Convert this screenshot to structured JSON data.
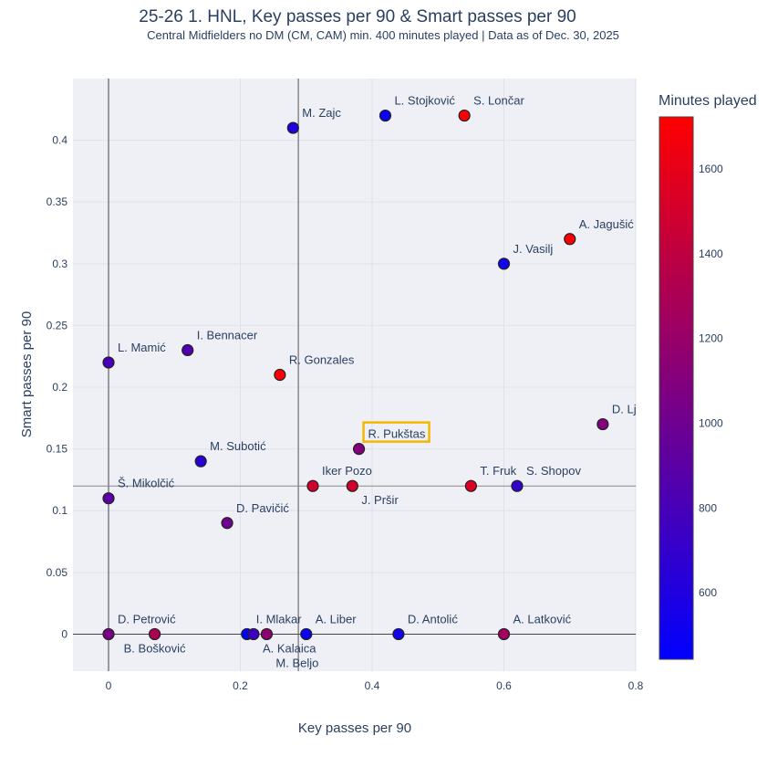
{
  "chart_data": {
    "type": "scatter",
    "title": "25-26 1. HNL, Key passes per 90 & Smart passes per 90",
    "subtitle": "Central Midfielders no DM (CM, CAM) min. 400 minutes played | Data as of Dec. 30, 2025",
    "xlabel": "Key passes per 90",
    "ylabel": "Smart passes per 90",
    "xlim": [
      -0.054,
      0.8
    ],
    "ylim": [
      -0.03,
      0.45
    ],
    "xticks": [
      0,
      0.2,
      0.4,
      0.6,
      0.8
    ],
    "xtick_labels": [
      "0",
      "0.2",
      "0.4",
      "0.6",
      "0.8"
    ],
    "yticks": [
      0,
      0.05,
      0.1,
      0.15,
      0.2,
      0.25,
      0.3,
      0.35,
      0.4
    ],
    "ytick_labels": [
      "0",
      "0.05",
      "0.1",
      "0.15",
      "0.2",
      "0.25",
      "0.3",
      "0.35",
      "0.4"
    ],
    "grid": true,
    "reference_lines": {
      "x": 0.288,
      "y": 0.12
    },
    "colorbar": {
      "title": "Minutes played",
      "range": [
        443,
        1723
      ],
      "ticks": [
        600,
        800,
        1000,
        1200,
        1400,
        1600
      ],
      "tick_labels": [
        "600",
        "800",
        "1000",
        "1200",
        "1400",
        "1600"
      ],
      "colors": [
        "#0000ff",
        "#ff0000"
      ]
    },
    "highlight": {
      "player": "R. Pukštas",
      "color": "#f5b800"
    },
    "points": [
      {
        "name": "M. Zajc",
        "x": 0.28,
        "y": 0.41,
        "minutes": 600
      },
      {
        "name": "L. Stojković",
        "x": 0.42,
        "y": 0.42,
        "minutes": 500
      },
      {
        "name": "S. Lončar",
        "x": 0.54,
        "y": 0.42,
        "minutes": 1700
      },
      {
        "name": "A. Jagušić",
        "x": 0.7,
        "y": 0.32,
        "minutes": 1700
      },
      {
        "name": "J. Vasilj",
        "x": 0.6,
        "y": 0.3,
        "minutes": 550
      },
      {
        "name": "L. Mamić",
        "x": 0,
        "y": 0.22,
        "minutes": 800
      },
      {
        "name": "I. Bennacer",
        "x": 0.12,
        "y": 0.23,
        "minutes": 850
      },
      {
        "name": "R. Gonzales",
        "x": 0.26,
        "y": 0.21,
        "minutes": 1700
      },
      {
        "name": "D. Ljubičić",
        "x": 0.75,
        "y": 0.17,
        "minutes": 1100
      },
      {
        "name": "R. Pukštas",
        "x": 0.38,
        "y": 0.15,
        "minutes": 1100
      },
      {
        "name": "M. Subotić",
        "x": 0.14,
        "y": 0.14,
        "minutes": 650
      },
      {
        "name": "Iker Pozo",
        "x": 0.31,
        "y": 0.12,
        "minutes": 1500
      },
      {
        "name": "J. Pršir",
        "x": 0.37,
        "y": 0.12,
        "minutes": 1500
      },
      {
        "name": "T. Fruk",
        "x": 0.55,
        "y": 0.12,
        "minutes": 1550
      },
      {
        "name": "S. Shopov",
        "x": 0.62,
        "y": 0.12,
        "minutes": 700
      },
      {
        "name": "Š. Mikolčić",
        "x": 0,
        "y": 0.11,
        "minutes": 900
      },
      {
        "name": "D. Pavičić",
        "x": 0.18,
        "y": 0.09,
        "minutes": 1000
      },
      {
        "name": "D. Petrović",
        "x": 0,
        "y": 0,
        "minutes": 1050
      },
      {
        "name": "B. Bošković",
        "x": 0.07,
        "y": 0,
        "minutes": 1300
      },
      {
        "name": "I. Mlakar",
        "x": 0.21,
        "y": 0,
        "minutes": 450
      },
      {
        "name": "A. Kalaica",
        "x": 0.22,
        "y": 0,
        "minutes": 750
      },
      {
        "name": "M. Beljo",
        "x": 0.24,
        "y": 0,
        "minutes": 1150
      },
      {
        "name": "A. Liber",
        "x": 0.3,
        "y": 0,
        "minutes": 500
      },
      {
        "name": "D. Antolić",
        "x": 0.44,
        "y": 0,
        "minutes": 550
      },
      {
        "name": "A. Latković",
        "x": 0.6,
        "y": 0,
        "minutes": 1250
      }
    ]
  }
}
